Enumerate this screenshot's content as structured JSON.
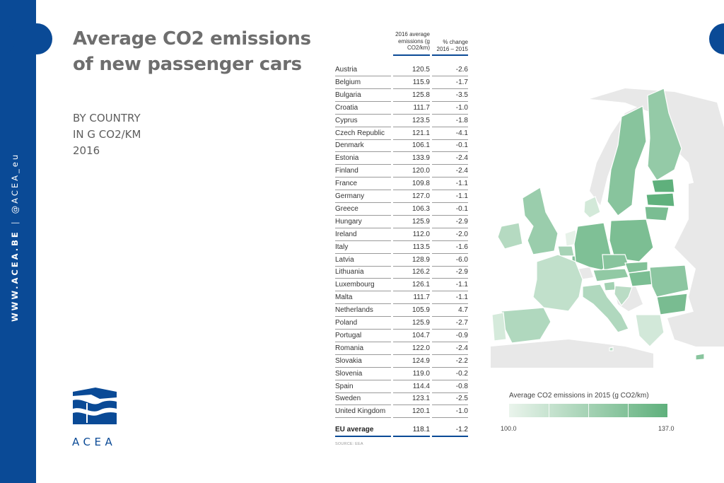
{
  "page": {
    "sidebar": {
      "website": "WWW.ACEA.BE",
      "separator": "|",
      "handle": "@ACEA_eu"
    },
    "title": "Average CO2 emissions of new passenger cars",
    "subtitle_lines": [
      "BY COUNTRY",
      "IN G CO2/KM",
      "2016"
    ],
    "logo_text": "ACEA",
    "source": "SOURCE: EEA",
    "colors": {
      "brand_blue": "#0a4a96",
      "map_low": "#eaf4ec",
      "map_high": "#5fb07c",
      "map_nonEU": "#e8e8e8"
    }
  },
  "chart_data": [
    {
      "type": "table",
      "columns": [
        "",
        "2016 average emissions (g CO2/km)",
        "% change 2016 – 2015"
      ],
      "col_header_1": "2016 average emissions (g CO2/km)",
      "col_header_2": "% change 2016 – 2015",
      "rows": [
        {
          "country": "Austria",
          "emissions": "120.5",
          "change": "-2.6"
        },
        {
          "country": "Belgium",
          "emissions": "115.9",
          "change": "-1.7"
        },
        {
          "country": "Bulgaria",
          "emissions": "125.8",
          "change": "-3.5"
        },
        {
          "country": "Croatia",
          "emissions": "111.7",
          "change": "-1.0"
        },
        {
          "country": "Cyprus",
          "emissions": "123.5",
          "change": "-1.8"
        },
        {
          "country": "Czech Republic",
          "emissions": "121.1",
          "change": "-4.1"
        },
        {
          "country": "Denmark",
          "emissions": "106.1",
          "change": "-0.1"
        },
        {
          "country": "Estonia",
          "emissions": "133.9",
          "change": "-2.4"
        },
        {
          "country": "Finland",
          "emissions": "120.0",
          "change": "-2.4"
        },
        {
          "country": "France",
          "emissions": "109.8",
          "change": "-1.1"
        },
        {
          "country": "Germany",
          "emissions": "127.0",
          "change": "-1.1"
        },
        {
          "country": "Greece",
          "emissions": "106.3",
          "change": "-0.1"
        },
        {
          "country": "Hungary",
          "emissions": "125.9",
          "change": "-2.9"
        },
        {
          "country": "Ireland",
          "emissions": "112.0",
          "change": "-2.0"
        },
        {
          "country": "Italy",
          "emissions": "113.5",
          "change": "-1.6"
        },
        {
          "country": "Latvia",
          "emissions": "128.9",
          "change": "-6.0"
        },
        {
          "country": "Lithuania",
          "emissions": "126.2",
          "change": "-2.9"
        },
        {
          "country": "Luxembourg",
          "emissions": "126.1",
          "change": "-1.1"
        },
        {
          "country": "Malta",
          "emissions": "111.7",
          "change": "-1.1"
        },
        {
          "country": "Netherlands",
          "emissions": "105.9",
          "change": "4.7"
        },
        {
          "country": "Poland",
          "emissions": "125.9",
          "change": "-2.7"
        },
        {
          "country": "Portugal",
          "emissions": "104.7",
          "change": "-0.9"
        },
        {
          "country": "Romania",
          "emissions": "122.0",
          "change": "-2.4"
        },
        {
          "country": "Slovakia",
          "emissions": "124.9",
          "change": "-2.2"
        },
        {
          "country": "Slovenia",
          "emissions": "119.0",
          "change": "-0.2"
        },
        {
          "country": "Spain",
          "emissions": "114.4",
          "change": "-0.8"
        },
        {
          "country": "Sweden",
          "emissions": "123.1",
          "change": "-2.5"
        },
        {
          "country": "United Kingdom",
          "emissions": "120.1",
          "change": "-1.0"
        }
      ],
      "total": {
        "country": "EU average",
        "emissions": "118.1",
        "change": "-1.2"
      }
    },
    {
      "type": "heatmap",
      "title": "Average CO2 emissions in 2015 (g CO2/km)",
      "scale_min": "100.0",
      "scale_max": "137.0",
      "scale_range": [
        100.0,
        137.0
      ],
      "legend_placement": "bottom-right"
    }
  ]
}
